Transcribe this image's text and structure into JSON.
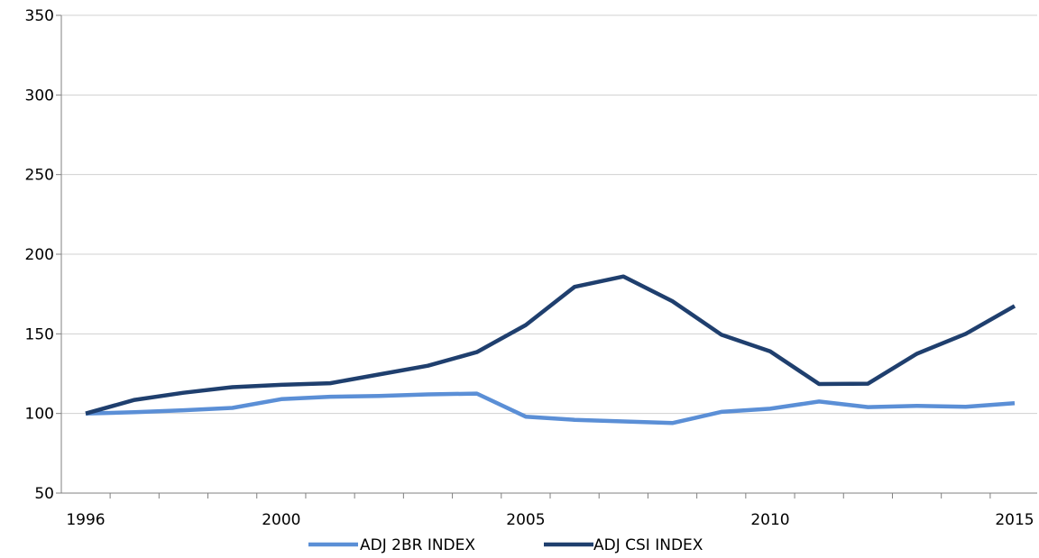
{
  "chart_data": {
    "type": "line",
    "title": "",
    "xlabel": "",
    "ylabel": "",
    "x": [
      1996,
      1997,
      1998,
      1999,
      2000,
      2001,
      2002,
      2003,
      2004,
      2005,
      2006,
      2007,
      2008,
      2009,
      2010,
      2011,
      2012,
      2013,
      2014,
      2015
    ],
    "ylim": [
      50,
      350
    ],
    "xlim": [
      1996,
      2015
    ],
    "yticks": [
      50,
      100,
      150,
      200,
      250,
      300,
      350
    ],
    "xtick_labels": [
      {
        "x": 1996,
        "label": "1996"
      },
      {
        "x": 2000,
        "label": "2000"
      },
      {
        "x": 2005,
        "label": "2005"
      },
      {
        "x": 2010,
        "label": "2010"
      },
      {
        "x": 2015,
        "label": "2015"
      }
    ],
    "grid": "horizontal",
    "legend_position": "bottom",
    "series": [
      {
        "name": "ADJ 2BR INDEX",
        "color": "#5b8fd6",
        "values": [
          100,
          100.8,
          102,
          103.5,
          109,
          110.5,
          111,
          112,
          112.5,
          98,
          96,
          95,
          94,
          101,
          103,
          107.5,
          104,
          104.8,
          104.2,
          106.5
        ]
      },
      {
        "name": "ADJ CSI INDEX",
        "color": "#1f3f6e",
        "values": [
          100,
          108.5,
          113,
          116.5,
          118,
          119,
          124.5,
          130,
          138.5,
          155.5,
          179.5,
          186,
          170.5,
          149.5,
          139,
          118.5,
          118.7,
          137.5,
          150,
          167.5
        ]
      }
    ]
  }
}
